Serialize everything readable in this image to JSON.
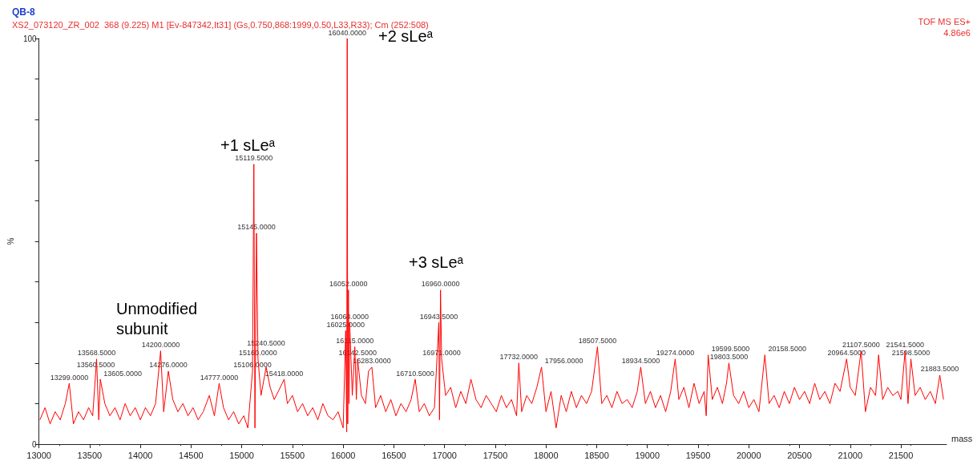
{
  "chart_data": {
    "type": "line",
    "title": "QB-8",
    "subtitle": "XS2_073120_ZR_002  368 (9.225) M1 [Ev-847342,It31] (Gs,0.750,868:1999,0.50,L33,R33); Cm (252:508)",
    "xlabel": "mass",
    "ylabel": "%",
    "annotations": [
      "TOF MS ES+",
      "4.86e6",
      "Unmodified subunit",
      "+1 sLeᵃ",
      "+2 sLeᵃ",
      "+3 sLeᵃ",
      {
        "text": "13299.0000",
        "x": 13299,
        "y": 15
      },
      {
        "text": "13560.5000",
        "x": 13560.5,
        "y": 18
      },
      {
        "text": "13568.5000",
        "x": 13568.5,
        "y": 21
      },
      {
        "text": "13605.0000",
        "x": 13605,
        "y": 16
      },
      {
        "text": "14200.0000",
        "x": 14200,
        "y": 23
      },
      {
        "text": "14276.0000",
        "x": 14276,
        "y": 18
      },
      {
        "text": "14777.0000",
        "x": 14777,
        "y": 15
      },
      {
        "text": "15106.0000",
        "x": 15106,
        "y": 18
      },
      {
        "text": "15119.5000",
        "x": 15119.5,
        "y": 69
      },
      {
        "text": "15145.0000",
        "x": 15145,
        "y": 52
      },
      {
        "text": "15160.0000",
        "x": 15160,
        "y": 21
      },
      {
        "text": "15240.5000",
        "x": 15240.5,
        "y": 19
      },
      {
        "text": "15418.0000",
        "x": 15418,
        "y": 16
      },
      {
        "text": "16025.0000",
        "x": 16025,
        "y": 28
      },
      {
        "text": "16040.0000",
        "x": 16040,
        "y": 100
      },
      {
        "text": "16052.0000",
        "x": 16052,
        "y": 38
      },
      {
        "text": "16064.0000",
        "x": 16064,
        "y": 30
      },
      {
        "text": "16115.0000",
        "x": 16115,
        "y": 24
      },
      {
        "text": "16142.5000",
        "x": 16142.5,
        "y": 21
      },
      {
        "text": "16283.0000",
        "x": 16283,
        "y": 19
      },
      {
        "text": "16710.5000",
        "x": 16710.5,
        "y": 16
      },
      {
        "text": "16943.5000",
        "x": 16943.5,
        "y": 30
      },
      {
        "text": "16960.0000",
        "x": 16960,
        "y": 38
      },
      {
        "text": "16971.0000",
        "x": 16971,
        "y": 21
      },
      {
        "text": "17732.0000",
        "x": 17732,
        "y": 20
      },
      {
        "text": "17956.0000",
        "x": 17956,
        "y": 19
      },
      {
        "text": "18507.5000",
        "x": 18507.5,
        "y": 24
      },
      {
        "text": "18934.5000",
        "x": 18934.5,
        "y": 19
      },
      {
        "text": "19274.0000",
        "x": 19274,
        "y": 21
      },
      {
        "text": "19599.5000",
        "x": 19599.5,
        "y": 22
      },
      {
        "text": "19803.5000",
        "x": 19803.5,
        "y": 20
      },
      {
        "text": "20158.5000",
        "x": 20158.5,
        "y": 22
      },
      {
        "text": "20964.5000",
        "x": 20964.5,
        "y": 21
      },
      {
        "text": "21107.5000",
        "x": 21107.5,
        "y": 23
      },
      {
        "text": "21541.5000",
        "x": 21541.5,
        "y": 23
      },
      {
        "text": "21598.5000",
        "x": 21598.5,
        "y": 21
      },
      {
        "text": "21883.5000",
        "x": 21883.5,
        "y": 17
      }
    ],
    "xlim": [
      13000,
      21950
    ],
    "xticks": [
      13000,
      13500,
      14000,
      14500,
      15000,
      15500,
      16000,
      16500,
      17000,
      17500,
      18000,
      18500,
      19000,
      19500,
      20000,
      20500,
      21000,
      21500
    ],
    "ylim": [
      0,
      100
    ],
    "yticks": [
      0,
      {
        "value": 10,
        "label": null
      },
      {
        "value": 20,
        "label": null
      },
      {
        "value": 30,
        "label": null
      },
      {
        "value": 40,
        "label": null
      },
      {
        "value": 50,
        "label": null
      },
      {
        "value": 60,
        "label": null
      },
      {
        "value": 70,
        "label": null
      },
      {
        "value": 80,
        "label": null
      },
      {
        "value": 90,
        "label": null
      },
      100
    ],
    "grid": false,
    "series": [
      {
        "color": "#ff0000",
        "x": [
          13010,
          13060,
          13110,
          13160,
          13210,
          13260,
          13299,
          13340,
          13390,
          13440,
          13490,
          13530,
          13560.5,
          13568.5,
          13590,
          13605,
          13650,
          13700,
          13750,
          13800,
          13850,
          13900,
          13950,
          14000,
          14050,
          14100,
          14150,
          14200,
          14230,
          14276,
          14320,
          14370,
          14420,
          14470,
          14520,
          14570,
          14620,
          14680,
          14730,
          14777,
          14820,
          14870,
          14920,
          14970,
          15020,
          15060,
          15106,
          15119.5,
          15130,
          15145,
          15160,
          15190,
          15240.5,
          15280,
          15320,
          15360,
          15418,
          15450,
          15500,
          15550,
          15600,
          15650,
          15700,
          15750,
          15800,
          15850,
          15900,
          15950,
          16000,
          16025,
          16035,
          16040,
          16045,
          16052,
          16058,
          16064,
          16090,
          16115,
          16130,
          16142.5,
          16180,
          16220,
          16250,
          16283,
          16320,
          16370,
          16420,
          16470,
          16520,
          16570,
          16620,
          16670,
          16710.5,
          16750,
          16800,
          16850,
          16900,
          16943.5,
          16950,
          16960,
          16971,
          17010,
          17060,
          17110,
          17160,
          17210,
          17260,
          17310,
          17360,
          17410,
          17460,
          17510,
          17560,
          17610,
          17660,
          17710,
          17732,
          17760,
          17810,
          17860,
          17910,
          17956,
          18000,
          18050,
          18100,
          18150,
          18200,
          18250,
          18300,
          18350,
          18400,
          18450,
          18507.5,
          18550,
          18600,
          18650,
          18700,
          18750,
          18800,
          18850,
          18900,
          18934.5,
          18980,
          19030,
          19080,
          19130,
          19180,
          19230,
          19274,
          19310,
          19360,
          19410,
          19460,
          19510,
          19560,
          19580,
          19599.5,
          19640,
          19690,
          19740,
          19780,
          19803.5,
          19850,
          19900,
          19950,
          20000,
          20050,
          20100,
          20158.5,
          20200,
          20250,
          20300,
          20350,
          20400,
          20450,
          20500,
          20550,
          20600,
          20650,
          20700,
          20750,
          20800,
          20850,
          20900,
          20964.5,
          21000,
          21050,
          21107.5,
          21150,
          21200,
          21250,
          21280,
          21320,
          21370,
          21420,
          21470,
          21500,
          21541.5,
          21570,
          21598.5,
          21640,
          21690,
          21740,
          21790,
          21840,
          21883.5,
          21920
        ],
        "values": [
          6,
          9,
          5,
          8,
          6,
          10,
          15,
          5,
          8,
          6,
          9,
          7,
          18,
          21,
          6,
          16,
          10,
          7,
          9,
          6,
          10,
          7,
          9,
          6,
          9,
          7,
          10,
          23,
          8,
          18,
          11,
          8,
          10,
          7,
          9,
          6,
          8,
          12,
          7,
          15,
          9,
          6,
          8,
          5,
          7,
          4,
          18,
          69,
          4,
          52,
          21,
          12,
          19,
          14,
          11,
          13,
          16,
          10,
          12,
          8,
          10,
          7,
          9,
          6,
          10,
          7,
          6,
          8,
          4,
          28,
          3,
          100,
          5,
          38,
          10,
          30,
          12,
          24,
          11,
          21,
          12,
          10,
          18,
          19,
          9,
          12,
          8,
          11,
          7,
          10,
          8,
          11,
          16,
          8,
          10,
          7,
          9,
          30,
          6,
          38,
          21,
          12,
          14,
          9,
          13,
          10,
          16,
          11,
          9,
          12,
          10,
          8,
          12,
          9,
          11,
          7,
          20,
          8,
          12,
          10,
          14,
          19,
          8,
          13,
          4,
          12,
          8,
          13,
          9,
          12,
          10,
          13,
          24,
          10,
          12,
          9,
          13,
          10,
          11,
          9,
          13,
          19,
          10,
          13,
          9,
          12,
          8,
          13,
          21,
          11,
          14,
          9,
          15,
          10,
          13,
          7,
          22,
          11,
          14,
          10,
          15,
          20,
          12,
          10,
          13,
          9,
          11,
          8,
          22,
          10,
          12,
          9,
          13,
          10,
          14,
          11,
          13,
          10,
          15,
          11,
          13,
          10,
          15,
          13,
          21,
          14,
          12,
          23,
          8,
          14,
          12,
          22,
          11,
          14,
          12,
          13,
          11,
          23,
          10,
          21,
          12,
          14,
          11,
          13,
          10,
          17,
          11
        ]
      }
    ]
  }
}
